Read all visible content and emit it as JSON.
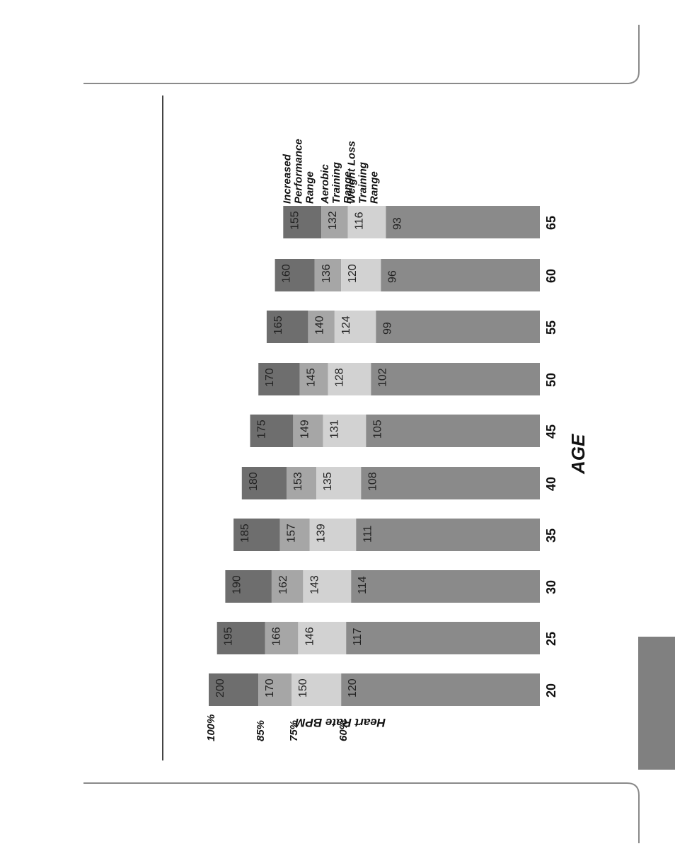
{
  "chart_data": {
    "type": "bar",
    "orientation": "horizontal-rotated",
    "xlabel": "AGE",
    "ylabel": "Heart Rate BPM",
    "categories": [
      "20",
      "25",
      "30",
      "35",
      "40",
      "45",
      "50",
      "55",
      "60",
      "65"
    ],
    "percent_ticks": [
      "100%",
      "85%",
      "75%",
      "60%"
    ],
    "legend": [
      "Increased Performance Range",
      "Aerobic Training Range",
      "Weight Loss Training Range"
    ],
    "series": [
      {
        "name": "Increased Performance Range",
        "values": [
          200,
          195,
          190,
          185,
          180,
          175,
          170,
          165,
          160,
          155
        ]
      },
      {
        "name": "Aerobic Training Range",
        "values": [
          170,
          166,
          162,
          157,
          153,
          149,
          145,
          140,
          136,
          132
        ]
      },
      {
        "name": "Weight Loss Training Range",
        "values": [
          150,
          146,
          143,
          139,
          135,
          131,
          128,
          124,
          120,
          116
        ]
      },
      {
        "name": "",
        "values": [
          120,
          117,
          114,
          111,
          108,
          105,
          102,
          99,
          96,
          93
        ]
      }
    ],
    "segment_colors": [
      "#6e6e6e",
      "#a6a6a6",
      "#d2d2d2",
      "#8a8a8a"
    ]
  }
}
